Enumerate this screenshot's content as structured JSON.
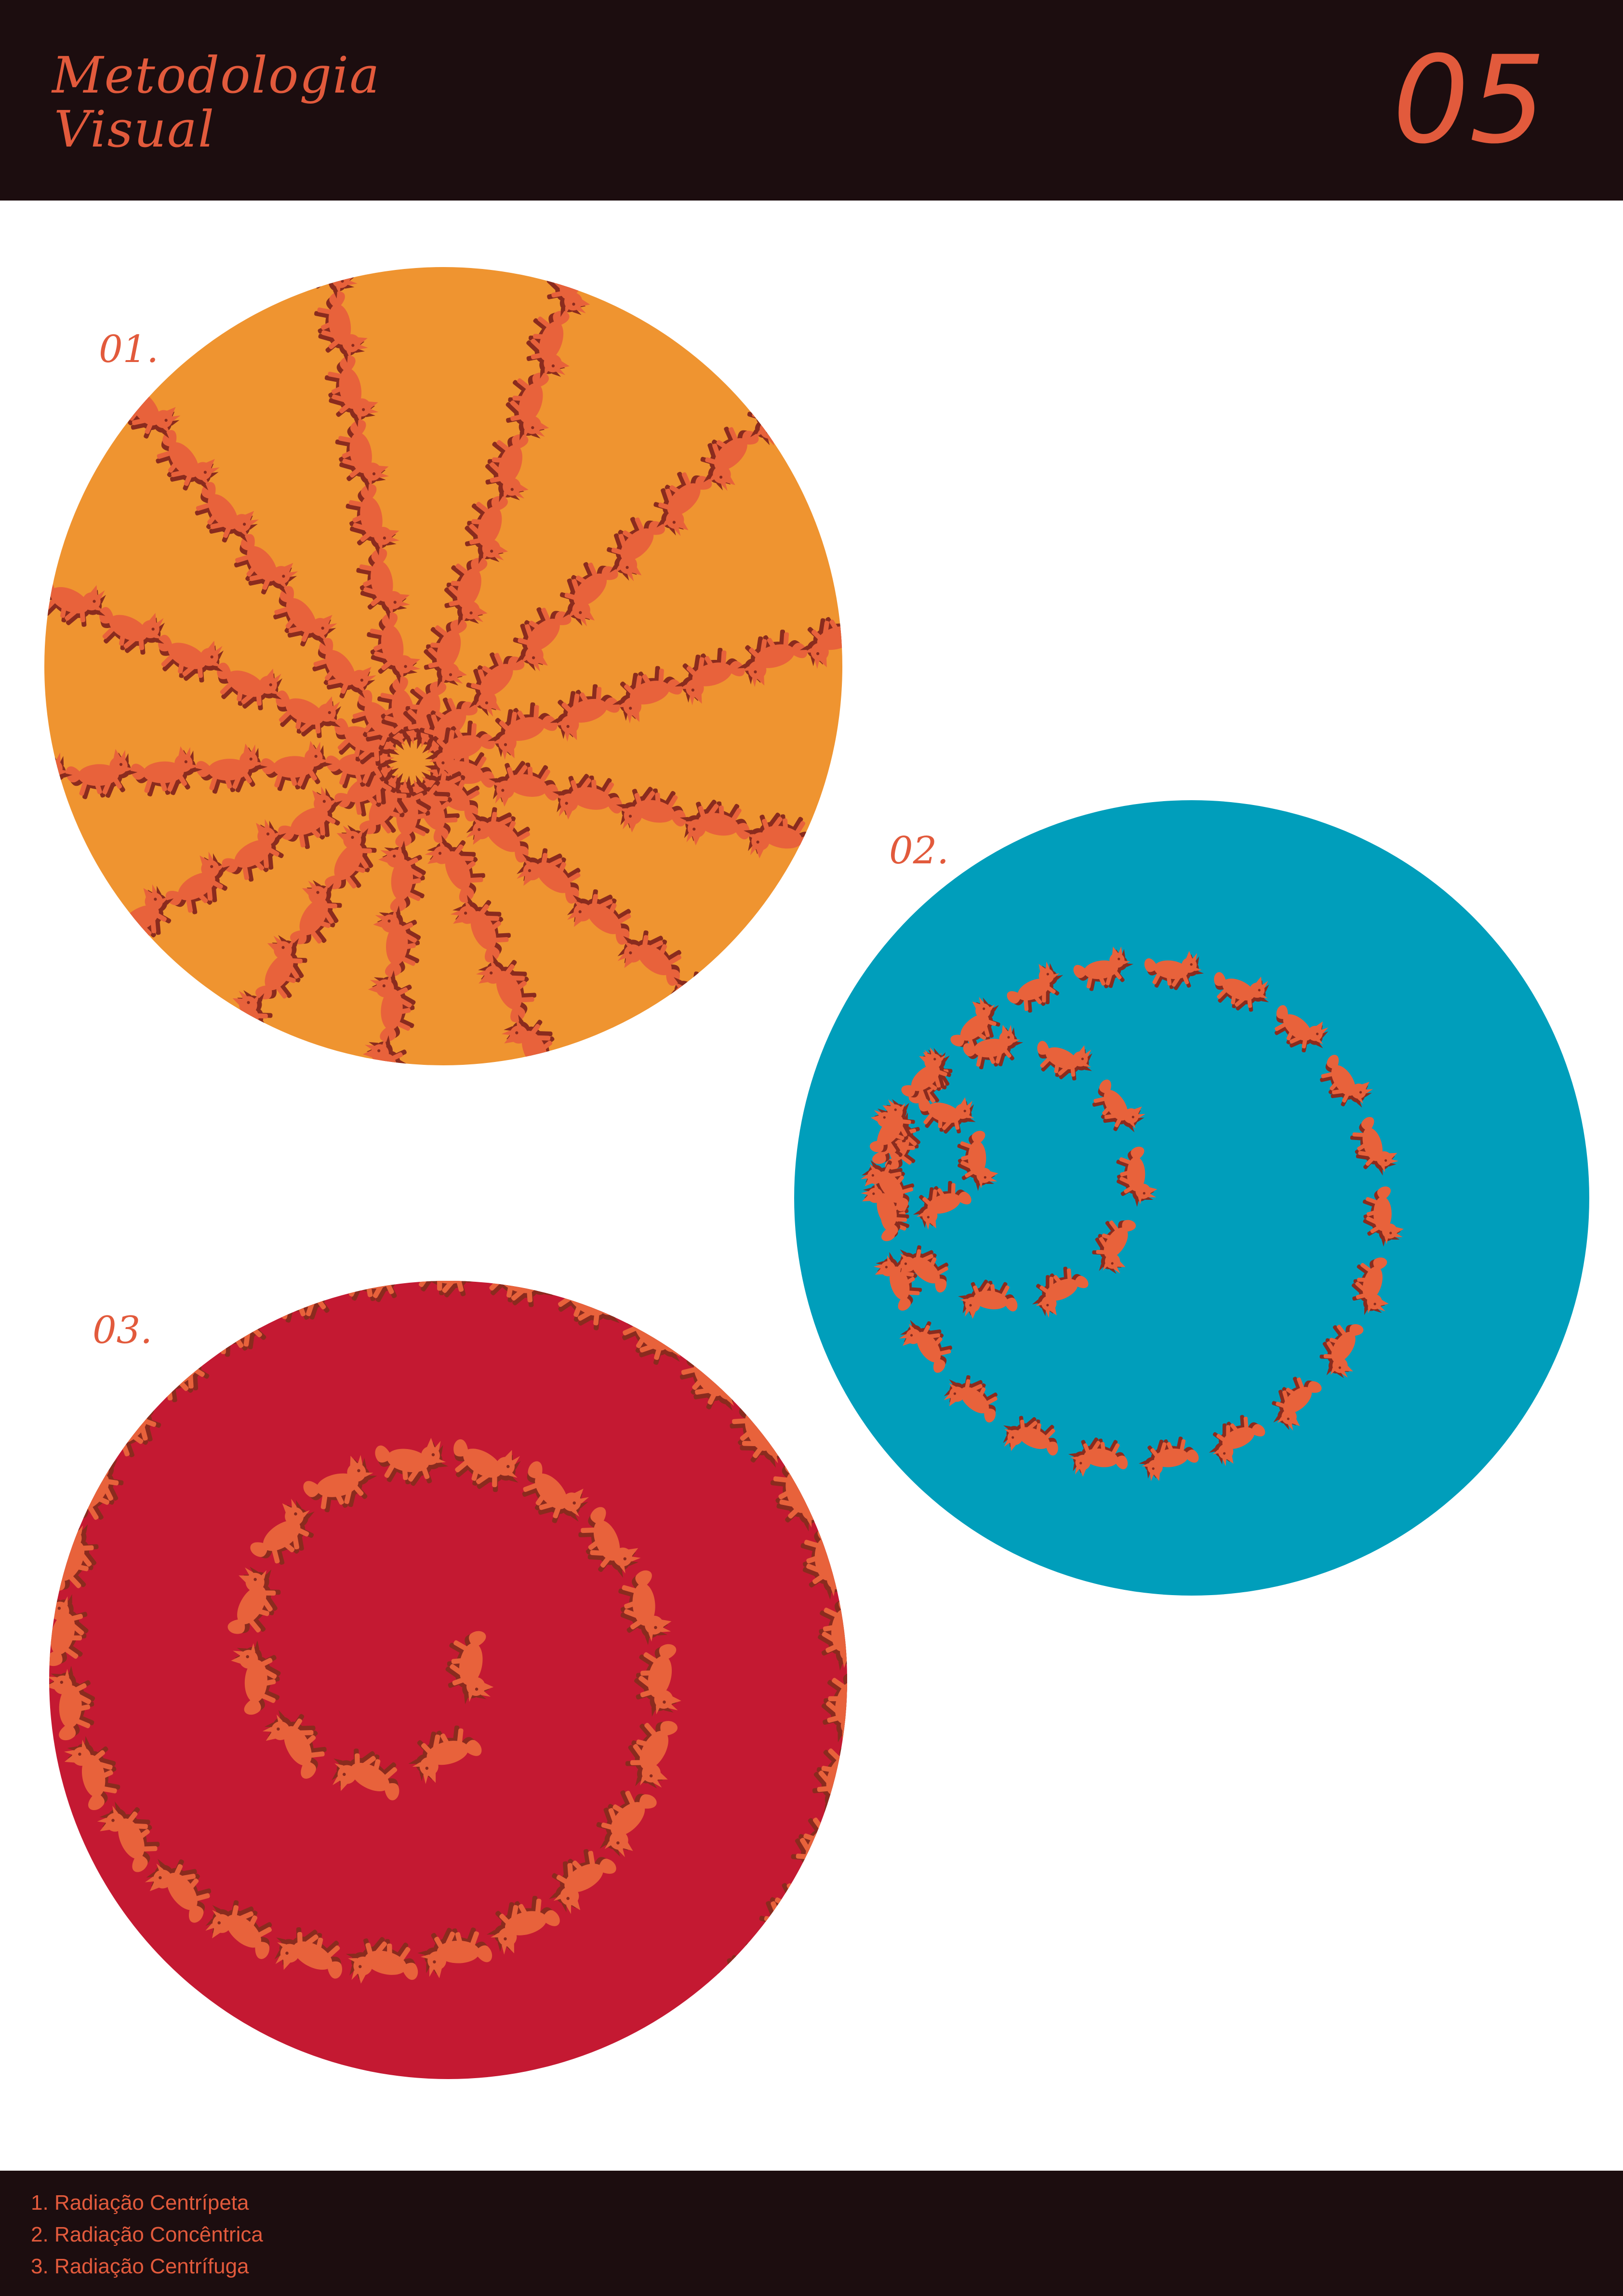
{
  "header": {
    "brand_line1": "Metodologia",
    "brand_line2": "Visual",
    "page_number": "05"
  },
  "figures": [
    {
      "label": "01.",
      "color": "#ef9430",
      "pattern": "radial-spokes"
    },
    {
      "label": "02.",
      "color": "#009ebb",
      "pattern": "concentric-rings"
    },
    {
      "label": "03.",
      "color": "#c41932",
      "pattern": "spiral"
    }
  ],
  "motif": {
    "color": "#e8623b",
    "shadow": "#8a2b1e",
    "icon": "fox-icon"
  },
  "footer": {
    "items": [
      "1. Radiação Centrípeta",
      "2. Radiação Concêntrica",
      "3. Radiação Centrífuga"
    ]
  }
}
